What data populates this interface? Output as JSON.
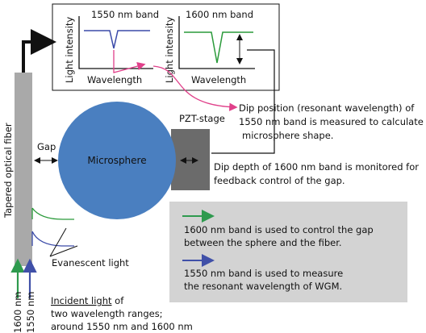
{
  "inset": {
    "plots": [
      {
        "title": "1550 nm band",
        "ylabel": "Light intensity",
        "xlabel": "Wavelength"
      },
      {
        "title": "1600 nm band",
        "ylabel": "Light intensity",
        "xlabel": "Wavelength"
      }
    ]
  },
  "fiber": {
    "label": "Tapered optical fiber"
  },
  "gap": {
    "label": "Gap"
  },
  "sphere": {
    "label": "Microsphere"
  },
  "stage": {
    "label": "PZT-stage"
  },
  "notes": {
    "dip_position": [
      "Dip position (resonant wavelength) of",
      "1550 nm band is measured to calculate",
      "microsphere shape."
    ],
    "dip_depth": [
      "Dip depth of 1600 nm band is monitored for",
      "feedback control of the gap."
    ]
  },
  "legend": {
    "green": [
      "1600 nm band is used to control the gap",
      "between the sphere and the fiber."
    ],
    "blue": [
      "1550 nm band is used to measure",
      "the resonant wavelength of WGM."
    ]
  },
  "evanescent": {
    "label": "Evanescent light"
  },
  "incident": {
    "wavelengths": [
      "1600 nm",
      "1550 nm"
    ],
    "underlined": "Incident light",
    "rest": " of",
    "lines": [
      "two wavelength ranges;",
      "around 1550 nm and 1600 nm"
    ]
  }
}
